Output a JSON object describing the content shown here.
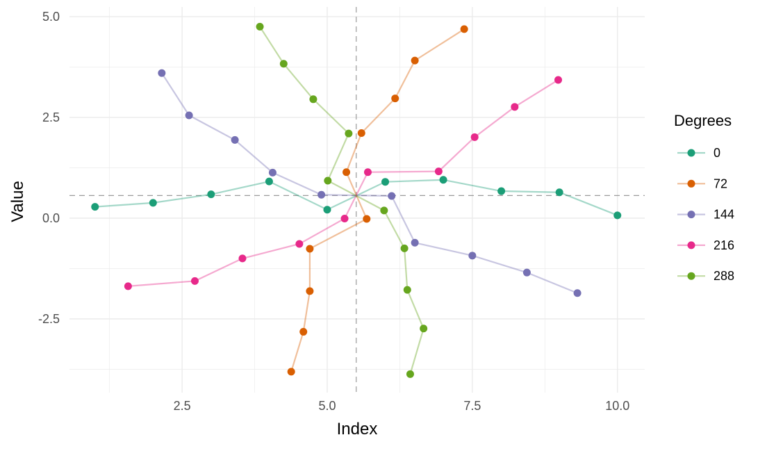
{
  "chart_data": {
    "type": "line",
    "title": "",
    "xlabel": "Index",
    "ylabel": "Value",
    "xlim": [
      0.56,
      10.47
    ],
    "ylim": [
      -4.33,
      5.24
    ],
    "xticks": [
      2.5,
      5.0,
      7.5,
      10.0
    ],
    "xtick_labels": [
      "2.5",
      "5.0",
      "7.5",
      "10.0"
    ],
    "yticks": [
      -2.5,
      0.0,
      2.5,
      5.0
    ],
    "ytick_labels": [
      "-2.5",
      "0.0",
      "2.5",
      "5.0"
    ],
    "grid": true,
    "reference_lines": {
      "x": 5.5,
      "y": 0.56,
      "style": "dashed"
    },
    "legend": {
      "title": "Degrees",
      "placement": "right"
    },
    "series": [
      {
        "name": "0",
        "color": "#1B9E77",
        "x": [
          1,
          2,
          3,
          4,
          5,
          6,
          7,
          8,
          9,
          10
        ],
        "y": [
          0.28,
          0.38,
          0.59,
          0.91,
          0.21,
          0.9,
          0.95,
          0.67,
          0.64,
          0.07
        ]
      },
      {
        "name": "72",
        "color": "#D95F02",
        "x": [
          4.38,
          4.59,
          4.7,
          4.7,
          5.68,
          5.33,
          5.59,
          6.17,
          6.51,
          7.36
        ],
        "y": [
          -3.81,
          -2.82,
          -1.81,
          -0.76,
          -0.02,
          1.14,
          2.11,
          2.97,
          3.91,
          4.69
        ]
      },
      {
        "name": "144",
        "color": "#7570B3",
        "x": [
          9.31,
          8.44,
          7.5,
          6.51,
          6.11,
          4.9,
          4.06,
          3.41,
          2.62,
          2.15
        ],
        "y": [
          -1.86,
          -1.35,
          -0.93,
          -0.61,
          0.55,
          0.58,
          1.13,
          1.94,
          2.55,
          3.6
        ]
      },
      {
        "name": "216",
        "color": "#E7298A",
        "x": [
          8.98,
          8.23,
          7.54,
          6.92,
          5.7,
          5.3,
          4.52,
          3.54,
          2.72,
          1.57
        ],
        "y": [
          3.43,
          2.76,
          2.01,
          1.16,
          1.14,
          -0.01,
          -0.64,
          -1.0,
          -1.56,
          -1.69
        ]
      },
      {
        "name": "288",
        "color": "#66A61E",
        "x": [
          3.84,
          4.25,
          4.76,
          5.37,
          5.01,
          5.98,
          6.33,
          6.38,
          6.66,
          6.43
        ],
        "y": [
          4.75,
          3.83,
          2.95,
          2.1,
          0.93,
          0.19,
          -0.75,
          -1.78,
          -2.74,
          -3.87
        ]
      }
    ]
  }
}
